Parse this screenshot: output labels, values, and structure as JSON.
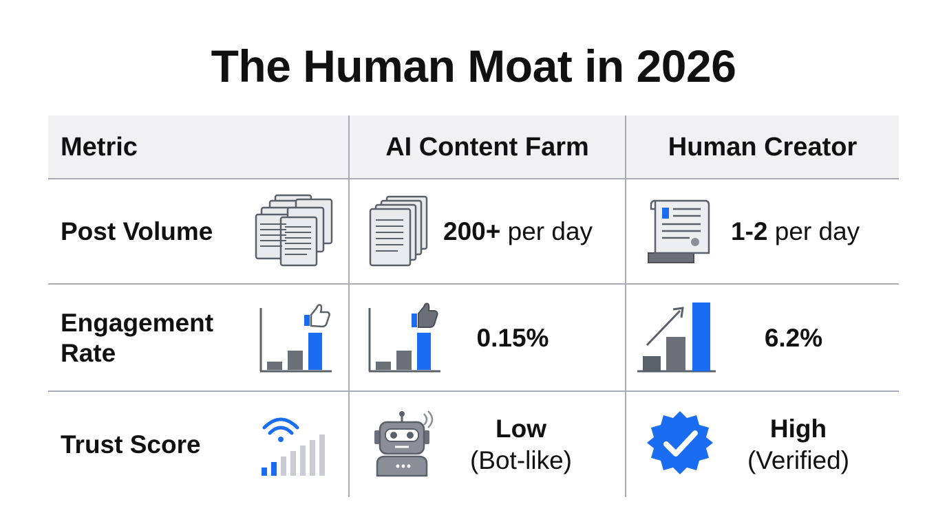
{
  "title": "The Human Moat in 2026",
  "header": {
    "col1": "Metric",
    "col2": "AI Content Farm",
    "col3": "Human Creator"
  },
  "rows": [
    {
      "label": "Post Volume",
      "ai_bold": "200+",
      "ai_rest": " per day",
      "human_bold": "1-2",
      "human_rest": " per day",
      "icons": [
        "documents-stack-icon",
        "document-stack-icon",
        "scroll-document-icon"
      ]
    },
    {
      "label_line1": "Engagement",
      "label_line2": "Rate",
      "ai_value": "0.15%",
      "human_value": "6.2%",
      "icons": [
        "bar-chart-thumbs-up-icon",
        "bar-chart-thumbs-up-icon",
        "bar-chart-trend-up-icon"
      ]
    },
    {
      "label": "Trust Score",
      "ai_line1": "Low",
      "ai_line2": "(Bot-like)",
      "human_line1": "High",
      "human_line2": "(Verified)",
      "icons": [
        "signal-strength-icon",
        "robot-icon",
        "verified-badge-icon"
      ]
    }
  ],
  "colors": {
    "accent_blue": "#1a6cf0",
    "gray_bar": "#6b7078",
    "header_bg": "#f1f1f3",
    "rule": "#a9acb4"
  }
}
